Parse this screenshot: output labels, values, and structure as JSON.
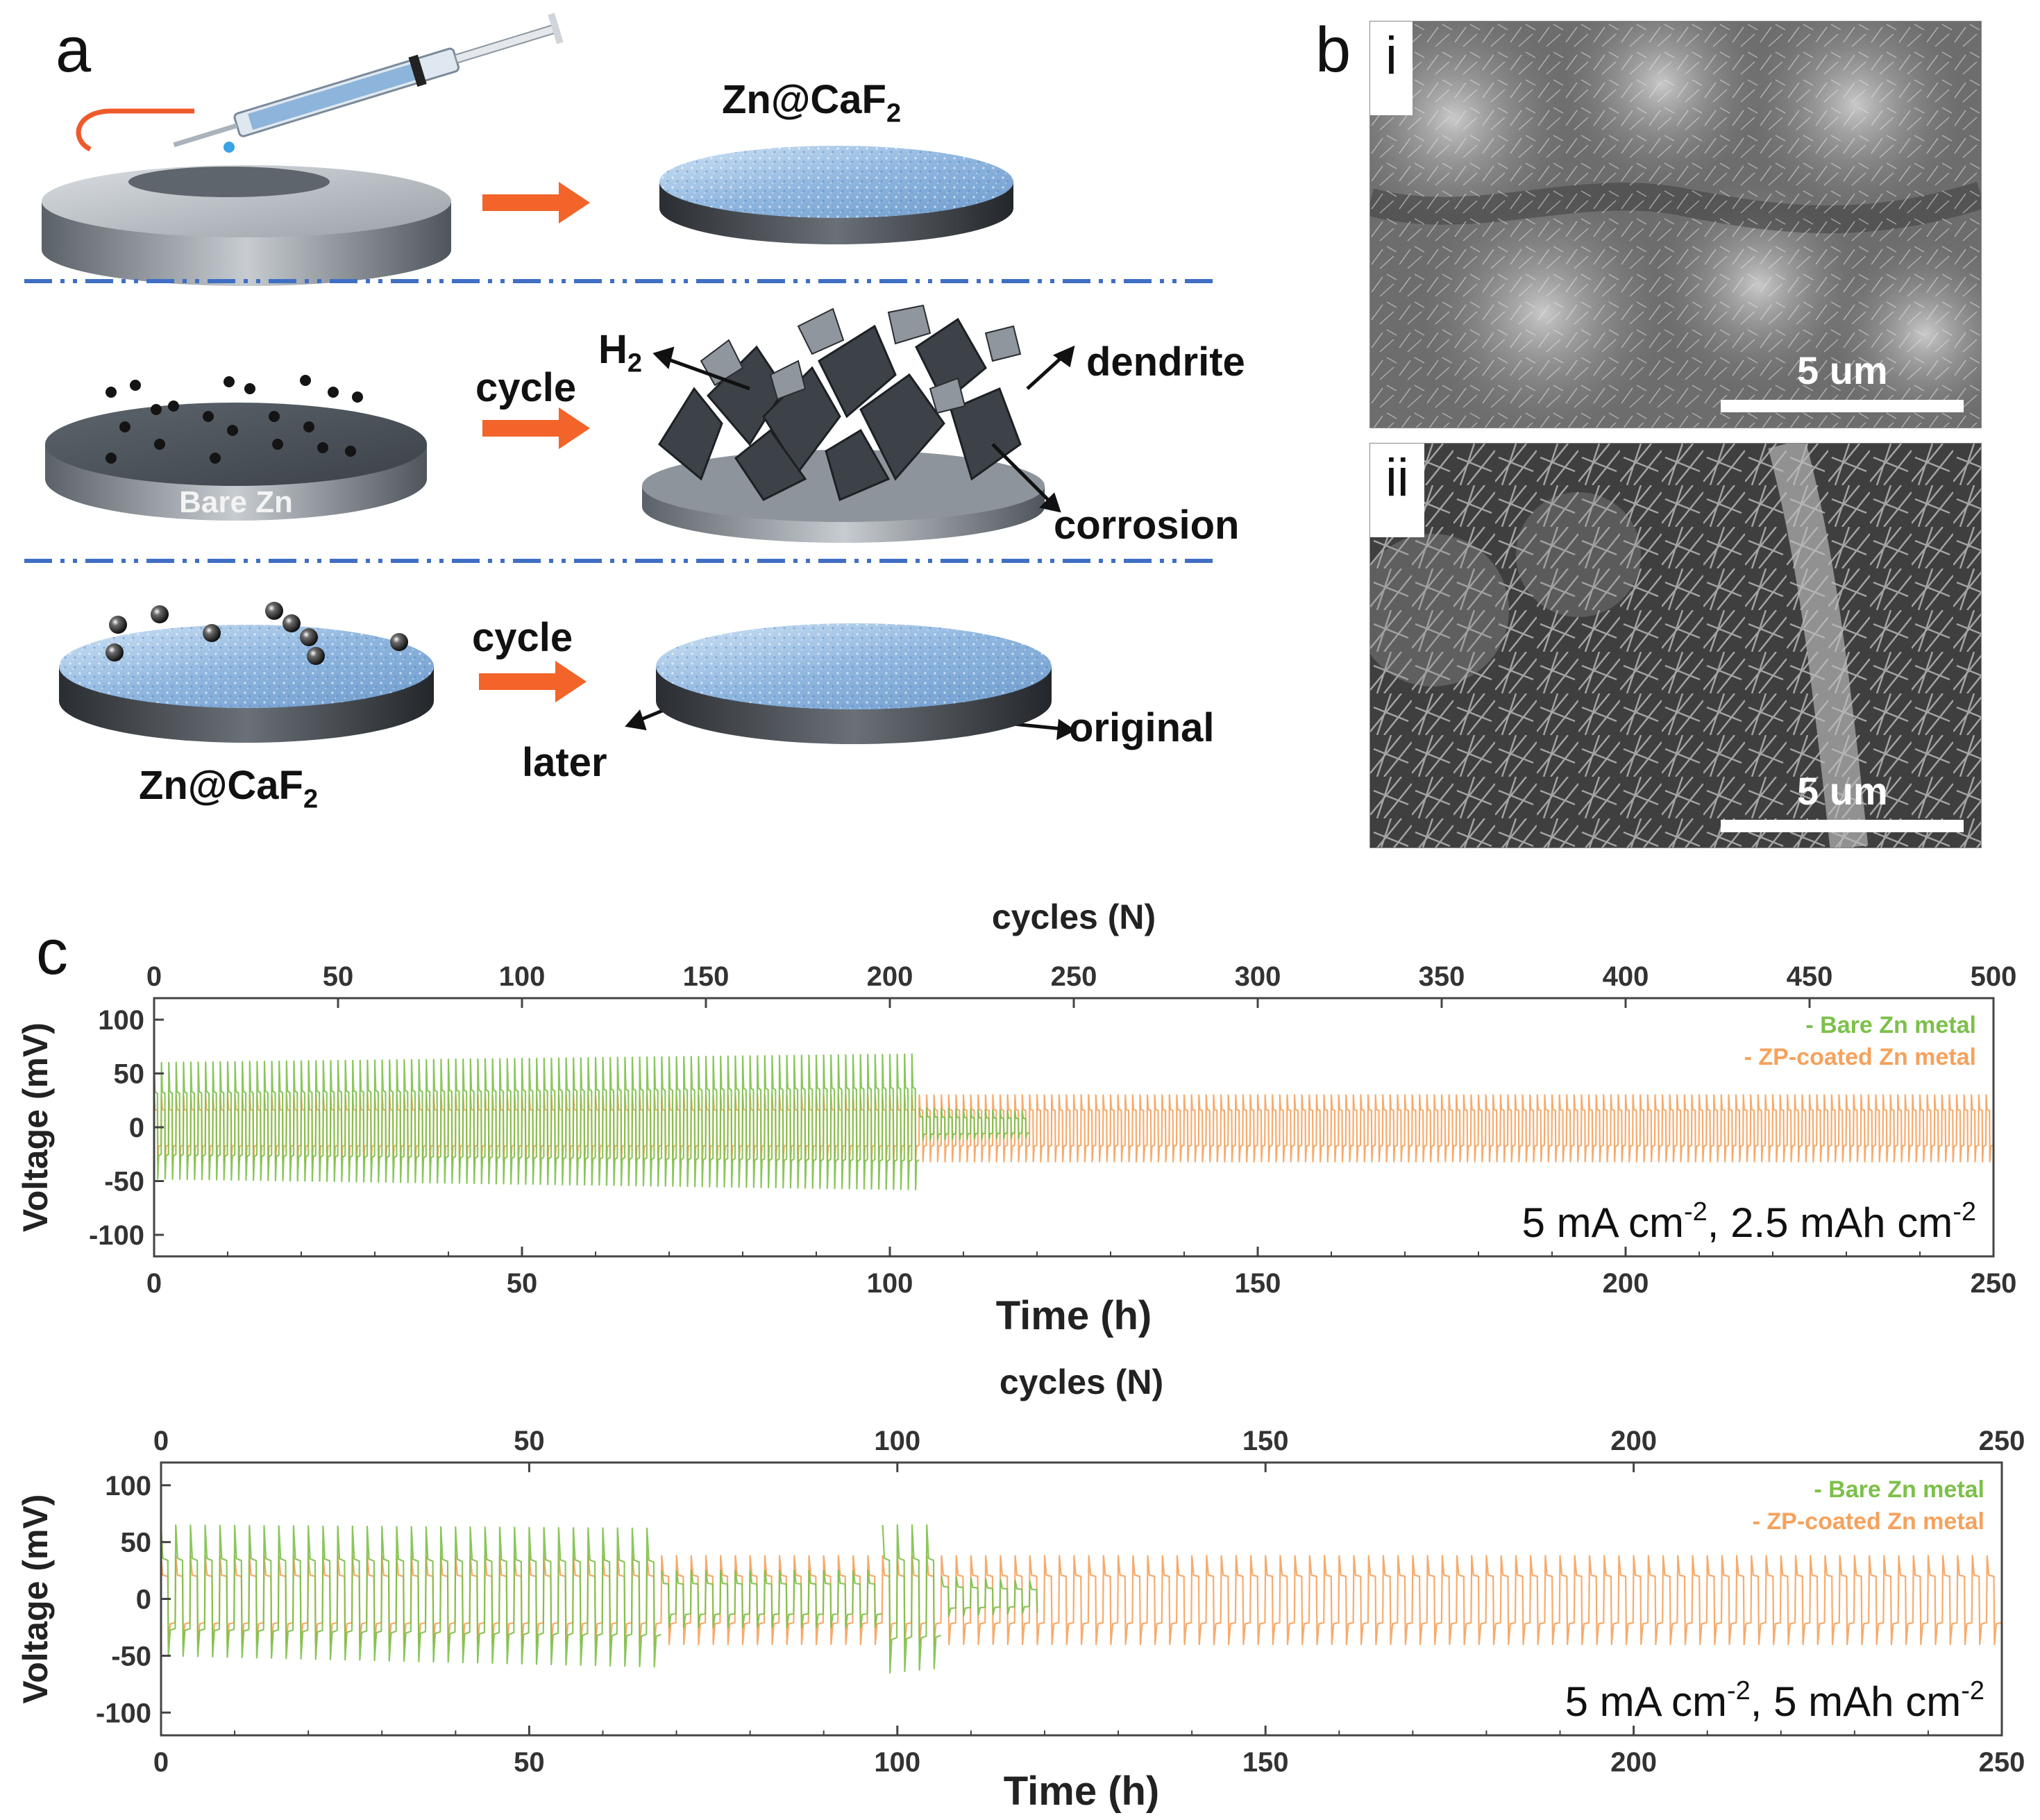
{
  "figure": {
    "panel_a": {
      "letter": "a",
      "top_result_label": "Zn@CaF",
      "top_result_sub": "2",
      "middle": {
        "arrow_label": "cycle",
        "disc_label": "Bare Zn",
        "h2_label": "H",
        "h2_sub": "2",
        "dendrite_label": "dendrite",
        "corrosion_label": "corrosion"
      },
      "bottom": {
        "arrow_label": "cycle",
        "disc_label": "Zn@CaF",
        "disc_label_sub": "2",
        "later_label": "later",
        "original_label": "original"
      }
    },
    "panel_b": {
      "letter": "b",
      "images": [
        {
          "tag": "i",
          "scale_label": "5 um"
        },
        {
          "tag": "ii",
          "scale_label": "5 um"
        }
      ]
    },
    "panel_c": {
      "letter": "c"
    }
  },
  "colors": {
    "bare_zn": "#7dc04a",
    "zp_coated": "#f5a25d",
    "arrow": "#f2642a",
    "divider": "#3f6fc4"
  },
  "chart_data": [
    {
      "type": "line",
      "xlabel": "Time (h)",
      "ylabel": "Voltage (mV)",
      "x2label": "cycles (N)",
      "xlim": [
        0,
        250
      ],
      "x2lim": [
        0,
        500
      ],
      "ylim": [
        -120,
        120
      ],
      "xticks": [
        0,
        50,
        100,
        150,
        200,
        250
      ],
      "x2ticks": [
        0,
        50,
        100,
        150,
        200,
        250,
        300,
        350,
        400,
        450,
        500
      ],
      "yticks": [
        100,
        50,
        0,
        -50,
        -100
      ],
      "annotation": "5 mA cm-2, 2.5 mAh cm-2",
      "annotation_parts": [
        "5 mA cm",
        "-2",
        ", 2.5 mAh cm",
        "-2"
      ],
      "legend": [
        "- Bare Zn metal",
        "- ZP-coated Zn metal"
      ],
      "legend_position": "top-right",
      "series": [
        {
          "name": "- Bare Zn metal",
          "cycle_period_h": 1.0,
          "segments": [
            {
              "t_start": 0,
              "t_end": 104,
              "v_top_start": 60,
              "v_top_end": 68,
              "v_bot_start": -48,
              "v_bot_end": -58
            },
            {
              "t_start": 104,
              "t_end": 119,
              "v_top_start": 18,
              "v_top_end": 15,
              "v_bot_start": -12,
              "v_bot_end": -10
            }
          ]
        },
        {
          "name": "- ZP-coated Zn metal",
          "cycle_period_h": 1.0,
          "segments": [
            {
              "t_start": 0,
              "t_end": 250,
              "v_top_start": 30,
              "v_top_end": 30,
              "v_bot_start": -32,
              "v_bot_end": -32
            }
          ]
        }
      ]
    },
    {
      "type": "line",
      "xlabel": "Time (h)",
      "ylabel": "Voltage (mV)",
      "x2label": "cycles (N)",
      "xlim": [
        0,
        250
      ],
      "x2lim": [
        0,
        250
      ],
      "ylim": [
        -120,
        120
      ],
      "xticks": [
        0,
        50,
        100,
        150,
        200,
        250
      ],
      "x2ticks": [
        0,
        50,
        100,
        150,
        200,
        250
      ],
      "yticks": [
        100,
        50,
        0,
        -50,
        -100
      ],
      "annotation": "5 mA cm-2, 5 mAh cm-2",
      "annotation_parts": [
        "5 mA cm",
        "-2",
        ", 5 mAh cm",
        "-2"
      ],
      "legend": [
        "- Bare Zn metal",
        "- ZP-coated Zn metal"
      ],
      "legend_position": "top-right",
      "series": [
        {
          "name": "- Bare Zn metal",
          "cycle_period_h": 2.0,
          "segments": [
            {
              "t_start": 0,
              "t_end": 68,
              "v_top_start": 65,
              "v_top_end": 62,
              "v_bot_start": -50,
              "v_bot_end": -60
            },
            {
              "t_start": 68,
              "t_end": 98,
              "v_top_start": 25,
              "v_top_end": 25,
              "v_bot_start": -25,
              "v_bot_end": -25
            },
            {
              "t_start": 98,
              "t_end": 106,
              "v_top_start": 65,
              "v_top_end": 65,
              "v_bot_start": -65,
              "v_bot_end": -60
            },
            {
              "t_start": 106,
              "t_end": 119,
              "v_top_start": 20,
              "v_top_end": 15,
              "v_bot_start": -15,
              "v_bot_end": -12
            }
          ]
        },
        {
          "name": "- ZP-coated Zn metal",
          "cycle_period_h": 2.0,
          "segments": [
            {
              "t_start": 0,
              "t_end": 250,
              "v_top_start": 38,
              "v_top_end": 38,
              "v_bot_start": -40,
              "v_bot_end": -40
            }
          ]
        }
      ]
    }
  ]
}
